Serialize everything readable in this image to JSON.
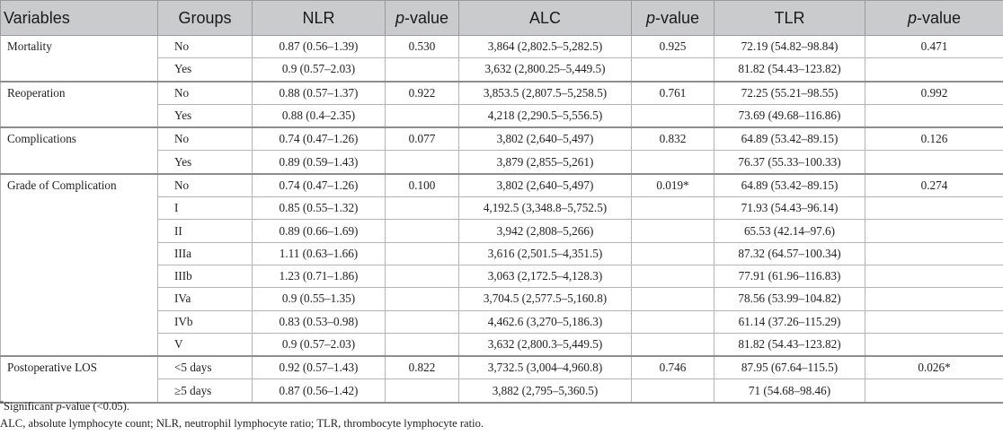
{
  "header": {
    "variables": "Variables",
    "groups": "Groups",
    "nlr": "NLR",
    "p": "p",
    "value_suffix": "-value",
    "alc": "ALC",
    "tlr": "TLR"
  },
  "sections": [
    {
      "variable": "Mortality",
      "rows": [
        {
          "group": "No",
          "nlr": "0.87 (0.56–1.39)",
          "p_nlr": "0.530",
          "alc": "3,864 (2,802.5–5,282.5)",
          "p_alc": "0.925",
          "tlr": "72.19 (54.82–98.84)",
          "p_tlr": "0.471"
        },
        {
          "group": "Yes",
          "nlr": "0.9 (0.57–2.03)",
          "p_nlr": "",
          "alc": "3,632 (2,800.25–5,449.5)",
          "p_alc": "",
          "tlr": "81.82 (54.43–123.82)",
          "p_tlr": ""
        }
      ]
    },
    {
      "variable": "Reoperation",
      "rows": [
        {
          "group": "No",
          "nlr": "0.88 (0.57–1.37)",
          "p_nlr": "0.922",
          "alc": "3,853.5 (2,807.5–5,258.5)",
          "p_alc": "0.761",
          "tlr": "72.25 (55.21–98.55)",
          "p_tlr": "0.992"
        },
        {
          "group": "Yes",
          "nlr": "0.88 (0.4–2.35)",
          "p_nlr": "",
          "alc": "4,218 (2,290.5–5,556.5)",
          "p_alc": "",
          "tlr": "73.69 (49.68–116.86)",
          "p_tlr": ""
        }
      ]
    },
    {
      "variable": "Complications",
      "rows": [
        {
          "group": "No",
          "nlr": "0.74 (0.47–1.26)",
          "p_nlr": "0.077",
          "alc": "3,802 (2,640–5,497)",
          "p_alc": "0.832",
          "tlr": "64.89 (53.42–89.15)",
          "p_tlr": "0.126"
        },
        {
          "group": "Yes",
          "nlr": "0.89 (0.59–1.43)",
          "p_nlr": "",
          "alc": "3,879 (2,855–5,261)",
          "p_alc": "",
          "tlr": "76.37 (55.33–100.33)",
          "p_tlr": ""
        }
      ]
    },
    {
      "variable": "Grade of Complication",
      "rows": [
        {
          "group": "No",
          "nlr": "0.74 (0.47–1.26)",
          "p_nlr": "0.100",
          "alc": "3,802 (2,640–5,497)",
          "p_alc": "0.019*",
          "tlr": "64.89 (53.42–89.15)",
          "p_tlr": "0.274"
        },
        {
          "group": "I",
          "nlr": "0.85 (0.55–1.32)",
          "p_nlr": "",
          "alc": "4,192.5 (3,348.8–5,752.5)",
          "p_alc": "",
          "tlr": "71.93 (54.43–96.14)",
          "p_tlr": ""
        },
        {
          "group": "II",
          "nlr": "0.89 (0.66–1.69)",
          "p_nlr": "",
          "alc": "3,942 (2,808–5,266)",
          "p_alc": "",
          "tlr": "65.53 (42.14–97.6)",
          "p_tlr": ""
        },
        {
          "group": "IIIa",
          "nlr": "1.11 (0.63–1.66)",
          "p_nlr": "",
          "alc": "3,616 (2,501.5–4,351.5)",
          "p_alc": "",
          "tlr": "87.32 (64.57–100.34)",
          "p_tlr": ""
        },
        {
          "group": "IIIb",
          "nlr": "1.23 (0.71–1.86)",
          "p_nlr": "",
          "alc": "3,063 (2,172.5–4,128.3)",
          "p_alc": "",
          "tlr": "77.91 (61.96–116.83)",
          "p_tlr": ""
        },
        {
          "group": "IVa",
          "nlr": "0.9 (0.55–1.35)",
          "p_nlr": "",
          "alc": "3,704.5 (2,577.5–5,160.8)",
          "p_alc": "",
          "tlr": "78.56 (53.99–104.82)",
          "p_tlr": ""
        },
        {
          "group": "IVb",
          "nlr": "0.83 (0.53–0.98)",
          "p_nlr": "",
          "alc": "4,462.6 (3,270–5,186.3)",
          "p_alc": "",
          "tlr": "61.14 (37.26–115.29)",
          "p_tlr": ""
        },
        {
          "group": "V",
          "nlr": "0.9 (0.57–2.03)",
          "p_nlr": "",
          "alc": "3,632 (2,800.3–5,449.5)",
          "p_alc": "",
          "tlr": "81.82 (54.43–123.82)",
          "p_tlr": ""
        }
      ]
    },
    {
      "variable": "Postoperative LOS",
      "rows": [
        {
          "group": "<5 days",
          "nlr": "0.92 (0.57–1.43)",
          "p_nlr": "0.822",
          "alc": "3,732.5 (3,004–4,960.8)",
          "p_alc": "0.746",
          "tlr": "87.95 (67.64–115.5)",
          "p_tlr": "0.026*"
        },
        {
          "group": "≥5 days",
          "nlr": "0.87 (0.56–1.42)",
          "p_nlr": "",
          "alc": "3,882 (2,795–5,360.5)",
          "p_alc": "",
          "tlr": "71 (54.68–98.46)",
          "p_tlr": ""
        }
      ]
    }
  ],
  "footnotes": {
    "sig_mark": "*",
    "sig_prefix": "Significant ",
    "sig_p": "p",
    "sig_suffix": "-value (<0.05).",
    "abbreviations": "ALC, absolute lymphocyte count; NLR, neutrophil lymphocyte ratio; TLR, thrombocyte lymphocyte ratio."
  }
}
